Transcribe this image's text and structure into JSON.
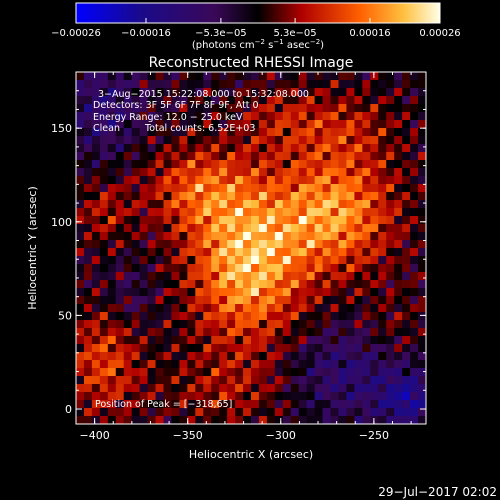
{
  "chart_data": {
    "type": "heatmap",
    "title": "Reconstructed RHESSI Image",
    "xlabel": "Heliocentric X (arcsec)",
    "ylabel": "Heliocentric Y (arcsec)",
    "xlim": [
      -410,
      -222
    ],
    "ylim": [
      -8,
      180
    ],
    "xticks": [
      -400,
      -350,
      -300,
      -250
    ],
    "xtick_labels": [
      "−400",
      "−350",
      "−300",
      "−250"
    ],
    "yticks": [
      0,
      50,
      100,
      150
    ],
    "yticks_labels": [
      "0",
      "50",
      "100",
      "150"
    ],
    "colorbar": {
      "ticks": [
        -0.00026,
        -0.00016,
        -5.3e-05,
        5.3e-05,
        0.00016,
        0.00026
      ],
      "tick_labels": [
        "−0.00026",
        "−0.00016",
        "−5.3e−05",
        "5.3e−05",
        "0.00016",
        "0.00026"
      ],
      "range": [
        -0.00026,
        0.00026
      ],
      "units_prefix": "(photons cm",
      "units_exp1": "−2",
      "units_mid1": " s",
      "units_exp2": "−1",
      "units_mid2": " asec",
      "units_exp3": "−2",
      "units_suffix": ")"
    },
    "annotations": {
      "time_range": "3−Aug−2015 15:22:08.000 to 15:32:08.000",
      "detectors": "Detectors: 3F 5F 6F 7F 8F 9F, Att 0",
      "energy": "Energy Range: 12.0 − 25.0 keV",
      "clean": "Clean",
      "total_counts": "Total counts: 6.52E+03",
      "peak": "Position of Peak = [−318,65]"
    },
    "peak": {
      "x": -318,
      "y": 65
    },
    "blobs": [
      {
        "x": -318,
        "y": 78,
        "amp": 1.0,
        "sx": 22,
        "sy": 30
      },
      {
        "x": -270,
        "y": 105,
        "amp": 0.85,
        "sx": 22,
        "sy": 22
      },
      {
        "x": -345,
        "y": 118,
        "amp": 0.55,
        "sx": 20,
        "sy": 16
      },
      {
        "x": -395,
        "y": 25,
        "amp": 0.55,
        "sx": 14,
        "sy": 20
      },
      {
        "x": -395,
        "y": 105,
        "amp": 0.35,
        "sx": 10,
        "sy": 12
      },
      {
        "x": -265,
        "y": 150,
        "amp": 0.35,
        "sx": 20,
        "sy": 14
      },
      {
        "x": -300,
        "y": 155,
        "amp": 0.3,
        "sx": 16,
        "sy": 12
      },
      {
        "x": -330,
        "y": 10,
        "amp": 0.3,
        "sx": 25,
        "sy": 14
      },
      {
        "x": -240,
        "y": 40,
        "amp": 0.25,
        "sx": 14,
        "sy": 16
      },
      {
        "x": -260,
        "y": 20,
        "amp": -0.45,
        "sx": 25,
        "sy": 18
      },
      {
        "x": -232,
        "y": 5,
        "amp": -0.55,
        "sx": 10,
        "sy": 10
      },
      {
        "x": -395,
        "y": 160,
        "amp": -0.4,
        "sx": 14,
        "sy": 18
      },
      {
        "x": -380,
        "y": 60,
        "amp": -0.2,
        "sx": 10,
        "sy": 12
      }
    ],
    "grid": false
  },
  "footer": {
    "timestamp": "29−Jul−2017 02:02"
  }
}
